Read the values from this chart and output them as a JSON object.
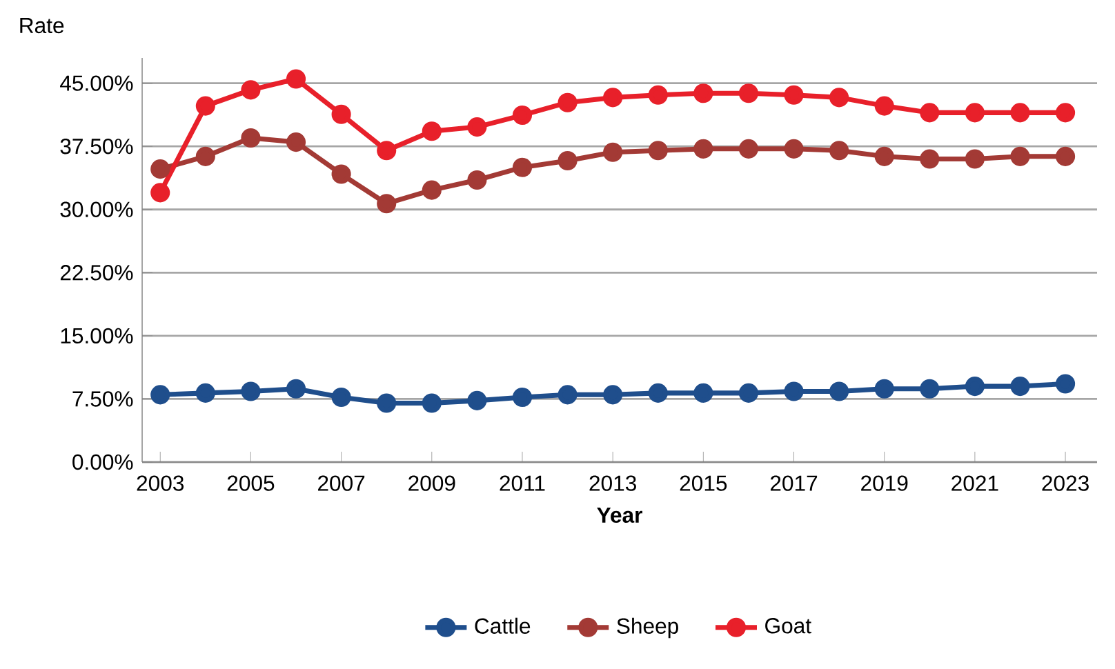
{
  "chart_data": {
    "type": "line",
    "xlabel": "Year",
    "ylabel": "Rate",
    "x": [
      2003,
      2004,
      2005,
      2006,
      2007,
      2008,
      2009,
      2010,
      2011,
      2012,
      2013,
      2014,
      2015,
      2016,
      2017,
      2018,
      2019,
      2020,
      2021,
      2022,
      2023
    ],
    "series": [
      {
        "name": "Cattle",
        "color": "#1f4e8c",
        "values": [
          8.0,
          8.2,
          8.4,
          8.7,
          7.7,
          7.0,
          7.0,
          7.3,
          7.7,
          8.0,
          8.0,
          8.2,
          8.2,
          8.2,
          8.4,
          8.4,
          8.7,
          8.7,
          9.0,
          9.0,
          9.3
        ]
      },
      {
        "name": "Sheep",
        "color": "#a33a35",
        "values": [
          34.8,
          36.3,
          38.5,
          38.0,
          34.2,
          30.7,
          32.3,
          33.5,
          35.0,
          35.8,
          36.8,
          37.0,
          37.2,
          37.2,
          37.2,
          37.0,
          36.3,
          36.0,
          36.0,
          36.3,
          36.3
        ]
      },
      {
        "name": "Goat",
        "color": "#e8202a",
        "values": [
          32.0,
          42.3,
          44.2,
          45.5,
          41.3,
          37.0,
          39.3,
          39.8,
          41.2,
          42.7,
          43.3,
          43.6,
          43.8,
          43.8,
          43.6,
          43.3,
          42.3,
          41.5,
          41.5,
          41.5,
          41.5
        ]
      }
    ],
    "xlim": [
      2002.6,
      2023.7
    ],
    "xticks": [
      2003,
      2005,
      2007,
      2009,
      2011,
      2013,
      2015,
      2017,
      2019,
      2021,
      2023
    ],
    "ylim": [
      0,
      48
    ],
    "yticks": [
      {
        "value": 0,
        "label": "0.00%"
      },
      {
        "value": 7.5,
        "label": "7.50%"
      },
      {
        "value": 15,
        "label": "15.00%"
      },
      {
        "value": 22.5,
        "label": "22.50%"
      },
      {
        "value": 30,
        "label": "30.00%"
      },
      {
        "value": 37.5,
        "label": "37.50%"
      },
      {
        "value": 45,
        "label": "45.00%"
      }
    ],
    "grid": "y",
    "legend": "bottom",
    "marker": "circle",
    "line_style": "solid"
  }
}
